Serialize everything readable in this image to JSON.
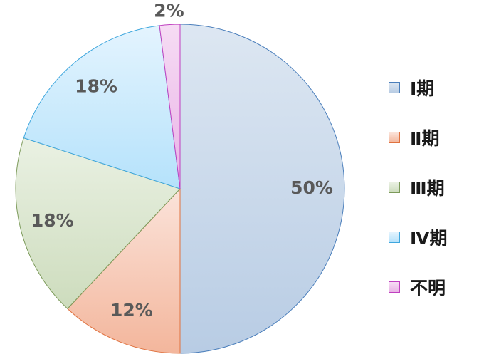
{
  "chart_data": {
    "type": "pie",
    "categories": [
      "Ⅰ期",
      "Ⅱ期",
      "Ⅲ期",
      "Ⅳ期",
      "不明"
    ],
    "values": [
      50,
      12,
      18,
      18,
      2
    ],
    "labels": [
      "50%",
      "12%",
      "18%",
      "18%",
      "2%"
    ],
    "legend_position": "right",
    "colors": [
      {
        "top": "#dde7f2",
        "bottom": "#b8cce4",
        "stroke": "#4a7ebb"
      },
      {
        "top": "#fbe3da",
        "bottom": "#f3b69c",
        "stroke": "#e0723f"
      },
      {
        "top": "#eaf1e3",
        "bottom": "#cddcbd",
        "stroke": "#7c9a5a"
      },
      {
        "top": "#e4f4fe",
        "bottom": "#b5e2fb",
        "stroke": "#3fa7de"
      },
      {
        "top": "#f6dcf4",
        "bottom": "#e9b2e6",
        "stroke": "#c040c0"
      }
    ]
  },
  "legend": {
    "items": [
      {
        "label": "Ⅰ期"
      },
      {
        "label": "Ⅱ期"
      },
      {
        "label": "Ⅲ期"
      },
      {
        "label": "Ⅳ期"
      },
      {
        "label": "不明"
      }
    ]
  }
}
